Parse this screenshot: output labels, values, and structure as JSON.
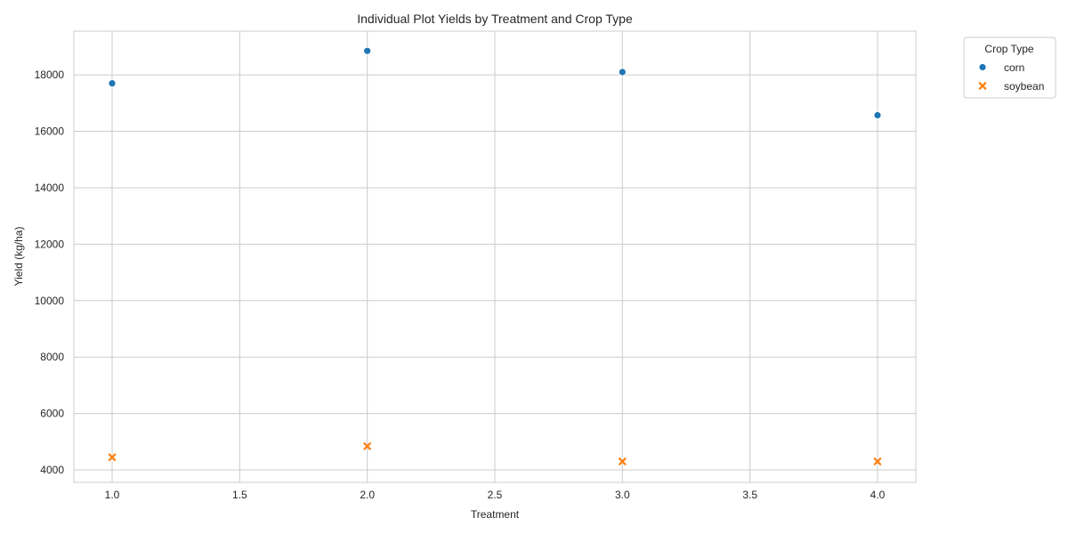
{
  "chart_data": {
    "type": "scatter",
    "title": "Individual Plot Yields by Treatment and Crop Type",
    "xlabel": "Treatment",
    "ylabel": "Yield (kg/ha)",
    "xlim": [
      0.85,
      4.15
    ],
    "ylim": [
      3560,
      19550
    ],
    "x_ticks": [
      1.0,
      1.5,
      2.0,
      2.5,
      3.0,
      3.5,
      4.0
    ],
    "x_tick_labels": [
      "1.0",
      "1.5",
      "2.0",
      "2.5",
      "3.0",
      "3.5",
      "4.0"
    ],
    "y_ticks": [
      4000,
      6000,
      8000,
      10000,
      12000,
      14000,
      16000,
      18000
    ],
    "y_tick_labels": [
      "4000",
      "6000",
      "8000",
      "10000",
      "12000",
      "14000",
      "16000",
      "18000"
    ],
    "grid": true,
    "legend": {
      "title": "Crop Type",
      "placement": "outside-top-right"
    },
    "series": [
      {
        "name": "corn",
        "marker": "circle",
        "color": "#1f77b4",
        "points": [
          {
            "x": 1.0,
            "y": 17700
          },
          {
            "x": 2.0,
            "y": 18850
          },
          {
            "x": 3.0,
            "y": 18100
          },
          {
            "x": 4.0,
            "y": 16570
          }
        ]
      },
      {
        "name": "soybean",
        "marker": "x",
        "color": "#ff7f0e",
        "points": [
          {
            "x": 1.0,
            "y": 4450
          },
          {
            "x": 2.0,
            "y": 4840
          },
          {
            "x": 3.0,
            "y": 4300
          },
          {
            "x": 4.0,
            "y": 4300
          }
        ]
      }
    ]
  }
}
